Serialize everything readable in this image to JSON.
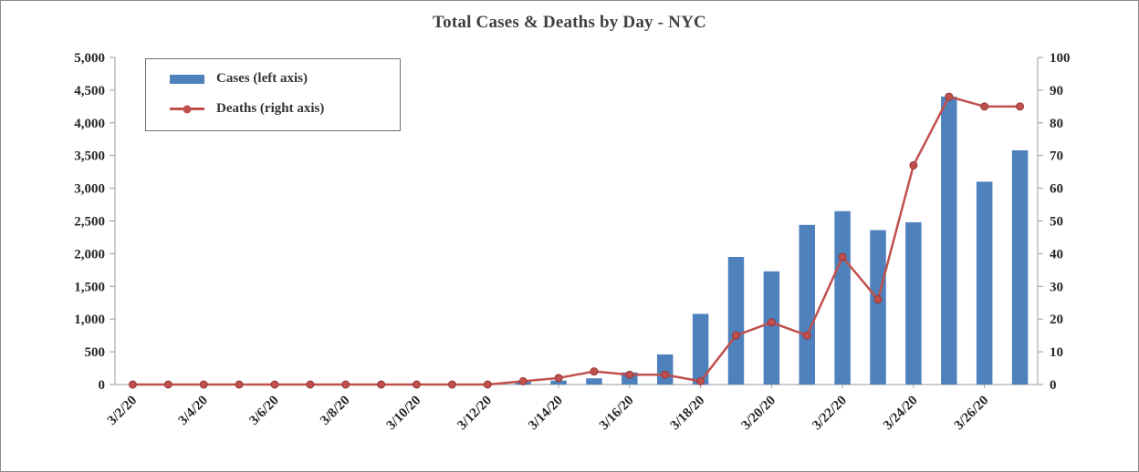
{
  "window": {
    "background": "#ffffff",
    "border_color": "#8a8a8a"
  },
  "chart_data": {
    "type": "combo",
    "title": "Total Cases & Deaths by Day - NYC",
    "grid": false,
    "legend_position": "top-left",
    "x": [
      "3/2/20",
      "3/3/20",
      "3/4/20",
      "3/5/20",
      "3/6/20",
      "3/7/20",
      "3/8/20",
      "3/9/20",
      "3/10/20",
      "3/11/20",
      "3/12/20",
      "3/13/20",
      "3/14/20",
      "3/15/20",
      "3/16/20",
      "3/17/20",
      "3/18/20",
      "3/19/20",
      "3/20/20",
      "3/21/20",
      "3/22/20",
      "3/23/20",
      "3/24/20",
      "3/25/20",
      "3/26/20",
      "3/27/20"
    ],
    "x_tick_labels": [
      "3/2/20",
      "3/4/20",
      "3/6/20",
      "3/8/20",
      "3/10/20",
      "3/12/20",
      "3/14/20",
      "3/16/20",
      "3/18/20",
      "3/20/20",
      "3/22/20",
      "3/24/20",
      "3/26/20"
    ],
    "series": [
      {
        "name": "Cases (left axis)",
        "type": "bar",
        "axis": "left",
        "color": "#4F81BD",
        "values": [
          0,
          0,
          0,
          0,
          0,
          0,
          0,
          0,
          0,
          0,
          0,
          45,
          60,
          95,
          185,
          460,
          1080,
          1950,
          1730,
          2440,
          2650,
          2360,
          2480,
          4400,
          3100,
          3580
        ]
      },
      {
        "name": "Deaths (right axis)",
        "type": "line",
        "axis": "right",
        "color": "#C0504D",
        "marker_stroke": "#953735",
        "values": [
          0,
          0,
          0,
          0,
          0,
          0,
          0,
          0,
          0,
          0,
          0,
          1,
          2,
          4,
          3,
          3,
          1,
          15,
          19,
          15,
          39,
          26,
          67,
          88,
          85,
          85
        ]
      }
    ],
    "left_axis": {
      "min": 0,
      "max": 5000,
      "step": 500
    },
    "right_axis": {
      "min": 0,
      "max": 100,
      "step": 10
    }
  }
}
